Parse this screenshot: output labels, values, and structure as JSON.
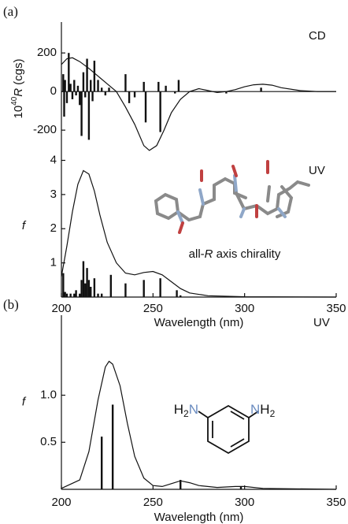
{
  "chart_data": [
    {
      "type": "line",
      "panel_label": "(a)",
      "annotation": "CD",
      "ylabel": {
        "base": "10",
        "exponent": "40",
        "symbol": "R",
        "unit": "(cgs)"
      },
      "xlim": [
        200,
        350
      ],
      "ylim": [
        -330,
        360
      ],
      "yticks": [
        -200,
        0,
        200
      ],
      "zero_line": true,
      "color": "#111111",
      "x": [
        200,
        203,
        206,
        210,
        215,
        220,
        225,
        230,
        235,
        240,
        245,
        248,
        252,
        256,
        260,
        265,
        270,
        275,
        280,
        285,
        290,
        295,
        300,
        305,
        310,
        315,
        320,
        330,
        340,
        350
      ],
      "values": [
        140,
        170,
        175,
        155,
        120,
        80,
        40,
        0,
        -80,
        -170,
        -280,
        -305,
        -280,
        -200,
        -110,
        -40,
        0,
        15,
        5,
        -5,
        0,
        10,
        25,
        35,
        38,
        33,
        20,
        5,
        0,
        0
      ],
      "sticks": {
        "x": [
          201,
          201.5,
          202,
          203,
          204,
          205,
          206,
          207,
          208,
          209,
          210,
          211,
          212,
          213,
          214,
          215,
          216,
          217,
          218,
          220,
          222,
          224,
          226,
          235,
          237,
          240,
          245,
          246,
          253,
          254,
          257,
          262,
          264,
          290,
          309
        ],
        "values": [
          90,
          -130,
          60,
          -60,
          200,
          40,
          -40,
          60,
          -20,
          30,
          -70,
          -230,
          100,
          -30,
          170,
          -250,
          60,
          -50,
          160,
          60,
          20,
          -20,
          20,
          90,
          -60,
          -30,
          50,
          -160,
          50,
          -210,
          30,
          -10,
          60,
          -10,
          20
        ]
      }
    },
    {
      "type": "line",
      "annotation": "UV",
      "ylabel": "f",
      "note": [
        "all-",
        "R",
        " axis chirality"
      ],
      "xlabel": "Wavelength (nm)",
      "xlim": [
        200,
        350
      ],
      "xticks": [
        200,
        250,
        300,
        350
      ],
      "ylim": [
        0,
        4.15
      ],
      "yticks": [
        1,
        2,
        3,
        4
      ],
      "color": "#111111",
      "x": [
        200,
        203,
        206,
        209,
        212,
        215,
        218,
        221,
        225,
        230,
        235,
        240,
        245,
        250,
        255,
        260,
        265,
        270,
        280,
        300,
        350
      ],
      "values": [
        0.6,
        1.5,
        2.5,
        3.3,
        3.7,
        3.6,
        3.1,
        2.4,
        1.6,
        1.0,
        0.7,
        0.65,
        0.72,
        0.75,
        0.65,
        0.45,
        0.25,
        0.12,
        0.04,
        0.01,
        0
      ],
      "sticks": {
        "x": [
          201,
          202,
          203,
          205,
          207,
          208,
          210,
          211,
          212,
          213,
          214,
          215,
          216,
          218,
          220,
          222,
          227,
          235,
          245,
          254,
          263,
          265
        ],
        "values": [
          0.7,
          0.15,
          0.1,
          0.1,
          0.1,
          0.2,
          0.1,
          0.5,
          1.05,
          0.4,
          0.85,
          0.5,
          0.3,
          0.55,
          0.1,
          0.1,
          0.65,
          0.4,
          0.5,
          0.55,
          0.2,
          0.05
        ]
      }
    },
    {
      "type": "line",
      "panel_label": "(b)",
      "annotation": "UV",
      "ylabel": "f",
      "xlabel": "Wavelength (nm)",
      "xlim": [
        200,
        350
      ],
      "xticks": [
        200,
        250,
        300,
        350
      ],
      "ylim": [
        0,
        1.85
      ],
      "yticks": [
        0.5,
        {
          "value": 1,
          "label": "1.0"
        }
      ],
      "color": "#111111",
      "molecule": {
        "left": [
          "H",
          "2",
          "N"
        ],
        "right": [
          "N",
          "H",
          "2"
        ]
      },
      "x": [
        200,
        210,
        215,
        220,
        224,
        226,
        228,
        232,
        236,
        240,
        245,
        250,
        255,
        260,
        265,
        270,
        275,
        285,
        295,
        300,
        310,
        350
      ],
      "values": [
        0.01,
        0.1,
        0.4,
        0.95,
        1.3,
        1.36,
        1.33,
        1.1,
        0.7,
        0.35,
        0.12,
        0.04,
        0.03,
        0.06,
        0.09,
        0.07,
        0.04,
        0.02,
        0.03,
        0.03,
        0.01,
        0
      ],
      "sticks": {
        "x": [
          222,
          228,
          265,
          298
        ],
        "values": [
          0.56,
          0.9,
          0.1,
          0.03
        ]
      }
    }
  ]
}
